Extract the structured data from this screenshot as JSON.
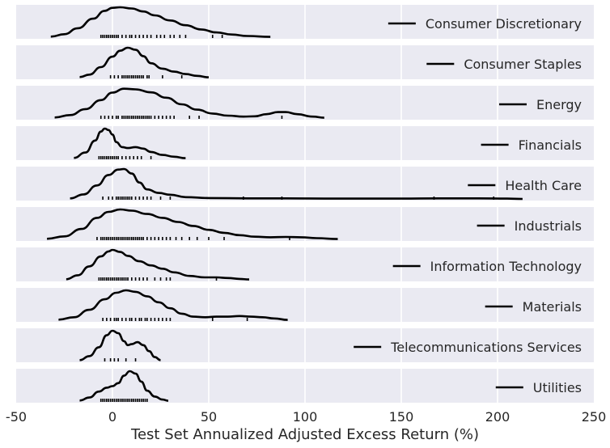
{
  "chart_data": {
    "type": "area",
    "title": "",
    "xlabel": "Test Set Annualized Adjusted Excess Return (%)",
    "ylabel": "",
    "xlim": [
      -50,
      250
    ],
    "xticks": [
      -50,
      0,
      50,
      100,
      150,
      200,
      250
    ],
    "grid": true,
    "legend_placement": "right",
    "background_color": "#eaeaf2",
    "grid_color": "#ffffff",
    "line_color": "#000000",
    "series": [
      {
        "name": "Consumer Discretionary",
        "density": [
          [
            -32,
            0.02
          ],
          [
            -25,
            0.1
          ],
          [
            -18,
            0.3
          ],
          [
            -10,
            0.62
          ],
          [
            -4,
            0.88
          ],
          [
            0,
            0.98
          ],
          [
            4,
            1.0
          ],
          [
            10,
            0.96
          ],
          [
            16,
            0.86
          ],
          [
            22,
            0.73
          ],
          [
            30,
            0.56
          ],
          [
            38,
            0.4
          ],
          [
            46,
            0.26
          ],
          [
            54,
            0.16
          ],
          [
            62,
            0.09
          ],
          [
            70,
            0.04
          ],
          [
            82,
            0.01
          ]
        ],
        "rug": [
          -6,
          -5,
          -4,
          -3,
          -2,
          -1,
          0,
          1,
          2,
          3,
          5,
          7,
          9,
          10,
          12,
          14,
          16,
          18,
          20,
          23,
          25,
          27,
          30,
          32,
          35,
          38,
          52,
          57
        ]
      },
      {
        "name": "Consumer Staples",
        "density": [
          [
            -17,
            0.02
          ],
          [
            -12,
            0.1
          ],
          [
            -6,
            0.35
          ],
          [
            0,
            0.7
          ],
          [
            4,
            0.9
          ],
          [
            8,
            1.0
          ],
          [
            12,
            0.93
          ],
          [
            16,
            0.72
          ],
          [
            20,
            0.48
          ],
          [
            26,
            0.3
          ],
          [
            32,
            0.2
          ],
          [
            38,
            0.12
          ],
          [
            44,
            0.06
          ],
          [
            50,
            0.01
          ]
        ],
        "rug": [
          -1,
          1,
          3,
          5,
          6,
          7,
          8,
          9,
          10,
          11,
          12,
          13,
          14,
          15,
          16,
          18,
          19,
          26,
          36
        ]
      },
      {
        "name": "Energy",
        "density": [
          [
            -30,
            0.02
          ],
          [
            -22,
            0.1
          ],
          [
            -14,
            0.3
          ],
          [
            -6,
            0.6
          ],
          [
            0,
            0.85
          ],
          [
            6,
            0.98
          ],
          [
            12,
            0.96
          ],
          [
            20,
            0.86
          ],
          [
            28,
            0.68
          ],
          [
            36,
            0.46
          ],
          [
            44,
            0.28
          ],
          [
            52,
            0.15
          ],
          [
            60,
            0.08
          ],
          [
            68,
            0.05
          ],
          [
            74,
            0.06
          ],
          [
            80,
            0.13
          ],
          [
            86,
            0.2
          ],
          [
            90,
            0.2
          ],
          [
            96,
            0.13
          ],
          [
            104,
            0.05
          ],
          [
            110,
            0.01
          ]
        ],
        "rug": [
          -6,
          -4,
          -2,
          0,
          2,
          3,
          5,
          6,
          7,
          8,
          9,
          10,
          11,
          12,
          13,
          14,
          15,
          16,
          17,
          18,
          19,
          20,
          22,
          24,
          26,
          28,
          30,
          32,
          40,
          45,
          88
        ]
      },
      {
        "name": "Financials",
        "density": [
          [
            -20,
            0.02
          ],
          [
            -14,
            0.2
          ],
          [
            -9,
            0.6
          ],
          [
            -6,
            0.9
          ],
          [
            -4,
            1.0
          ],
          [
            -2,
            0.95
          ],
          [
            0,
            0.8
          ],
          [
            2,
            0.55
          ],
          [
            5,
            0.38
          ],
          [
            8,
            0.35
          ],
          [
            12,
            0.38
          ],
          [
            16,
            0.33
          ],
          [
            20,
            0.22
          ],
          [
            26,
            0.12
          ],
          [
            32,
            0.06
          ],
          [
            38,
            0.01
          ]
        ],
        "rug": [
          -7,
          -6,
          -5,
          -4,
          -3,
          -2,
          -1,
          0,
          1,
          2,
          3,
          5,
          7,
          9,
          11,
          13,
          15,
          20
        ]
      },
      {
        "name": "Health Care",
        "density": [
          [
            -22,
            0.02
          ],
          [
            -15,
            0.15
          ],
          [
            -8,
            0.45
          ],
          [
            -2,
            0.8
          ],
          [
            3,
            0.98
          ],
          [
            6,
            1.0
          ],
          [
            10,
            0.85
          ],
          [
            14,
            0.55
          ],
          [
            18,
            0.32
          ],
          [
            24,
            0.2
          ],
          [
            30,
            0.14
          ],
          [
            38,
            0.06
          ],
          [
            50,
            0.03
          ],
          [
            70,
            0.02
          ],
          [
            90,
            0.02
          ],
          [
            110,
            0.01
          ],
          [
            130,
            0.01
          ],
          [
            150,
            0.01
          ],
          [
            170,
            0.02
          ],
          [
            190,
            0.02
          ],
          [
            205,
            0.01
          ],
          [
            213,
            0.0
          ]
        ],
        "rug": [
          -5,
          -2,
          0,
          2,
          3,
          4,
          5,
          6,
          7,
          8,
          9,
          10,
          12,
          14,
          16,
          18,
          20,
          25,
          30,
          68,
          88,
          167,
          198
        ]
      },
      {
        "name": "Industrials",
        "density": [
          [
            -34,
            0.02
          ],
          [
            -25,
            0.1
          ],
          [
            -16,
            0.35
          ],
          [
            -8,
            0.72
          ],
          [
            -2,
            0.92
          ],
          [
            4,
            1.0
          ],
          [
            10,
            0.96
          ],
          [
            18,
            0.85
          ],
          [
            26,
            0.72
          ],
          [
            34,
            0.58
          ],
          [
            42,
            0.45
          ],
          [
            50,
            0.32
          ],
          [
            58,
            0.22
          ],
          [
            66,
            0.14
          ],
          [
            74,
            0.09
          ],
          [
            82,
            0.07
          ],
          [
            90,
            0.08
          ],
          [
            98,
            0.07
          ],
          [
            106,
            0.04
          ],
          [
            117,
            0.01
          ]
        ],
        "rug": [
          -8,
          -6,
          -5,
          -4,
          -3,
          -2,
          -1,
          0,
          1,
          2,
          3,
          4,
          5,
          6,
          7,
          8,
          9,
          10,
          11,
          12,
          13,
          14,
          15,
          16,
          18,
          20,
          22,
          24,
          26,
          28,
          30,
          33,
          36,
          40,
          44,
          50,
          58,
          92
        ]
      },
      {
        "name": "Information Technology",
        "density": [
          [
            -24,
            0.02
          ],
          [
            -18,
            0.15
          ],
          [
            -12,
            0.45
          ],
          [
            -6,
            0.78
          ],
          [
            -2,
            0.95
          ],
          [
            0,
            1.0
          ],
          [
            4,
            0.93
          ],
          [
            8,
            0.8
          ],
          [
            14,
            0.62
          ],
          [
            20,
            0.48
          ],
          [
            26,
            0.37
          ],
          [
            32,
            0.25
          ],
          [
            40,
            0.13
          ],
          [
            48,
            0.08
          ],
          [
            54,
            0.08
          ],
          [
            60,
            0.06
          ],
          [
            66,
            0.03
          ],
          [
            71,
            0.01
          ]
        ],
        "rug": [
          -7,
          -6,
          -5,
          -4,
          -3,
          -2,
          -1,
          0,
          1,
          2,
          3,
          4,
          5,
          6,
          7,
          8,
          10,
          12,
          14,
          16,
          18,
          22,
          25,
          28,
          30,
          54
        ]
      },
      {
        "name": "Materials",
        "density": [
          [
            -28,
            0.02
          ],
          [
            -20,
            0.1
          ],
          [
            -12,
            0.35
          ],
          [
            -4,
            0.7
          ],
          [
            2,
            0.92
          ],
          [
            7,
            1.0
          ],
          [
            12,
            0.95
          ],
          [
            18,
            0.8
          ],
          [
            24,
            0.6
          ],
          [
            30,
            0.4
          ],
          [
            36,
            0.22
          ],
          [
            42,
            0.12
          ],
          [
            48,
            0.1
          ],
          [
            54,
            0.12
          ],
          [
            60,
            0.12
          ],
          [
            66,
            0.14
          ],
          [
            72,
            0.12
          ],
          [
            78,
            0.1
          ],
          [
            84,
            0.06
          ],
          [
            91,
            0.01
          ]
        ],
        "rug": [
          -5,
          -3,
          -1,
          1,
          2,
          3,
          5,
          7,
          9,
          10,
          12,
          14,
          15,
          17,
          18,
          20,
          22,
          24,
          26,
          28,
          30,
          52,
          70
        ]
      },
      {
        "name": "Telecommunications Services",
        "density": [
          [
            -17,
            0.02
          ],
          [
            -12,
            0.15
          ],
          [
            -7,
            0.45
          ],
          [
            -3,
            0.85
          ],
          [
            0,
            1.0
          ],
          [
            3,
            0.92
          ],
          [
            6,
            0.65
          ],
          [
            8,
            0.52
          ],
          [
            10,
            0.55
          ],
          [
            13,
            0.62
          ],
          [
            16,
            0.52
          ],
          [
            19,
            0.32
          ],
          [
            22,
            0.12
          ],
          [
            25,
            0.02
          ]
        ],
        "rug": [
          -4,
          -1,
          1,
          3,
          7,
          12
        ]
      },
      {
        "name": "Utilities",
        "density": [
          [
            -17,
            0.02
          ],
          [
            -12,
            0.12
          ],
          [
            -7,
            0.32
          ],
          [
            -3,
            0.45
          ],
          [
            0,
            0.5
          ],
          [
            3,
            0.6
          ],
          [
            6,
            0.85
          ],
          [
            9,
            1.0
          ],
          [
            12,
            0.92
          ],
          [
            15,
            0.65
          ],
          [
            18,
            0.35
          ],
          [
            22,
            0.15
          ],
          [
            26,
            0.05
          ],
          [
            29,
            0.01
          ]
        ],
        "rug": [
          -6,
          -5,
          -4,
          -3,
          -2,
          -1,
          0,
          1,
          2,
          3,
          4,
          5,
          6,
          7,
          8,
          9,
          10,
          11,
          12,
          13,
          14,
          15,
          16,
          17,
          18
        ]
      }
    ]
  }
}
